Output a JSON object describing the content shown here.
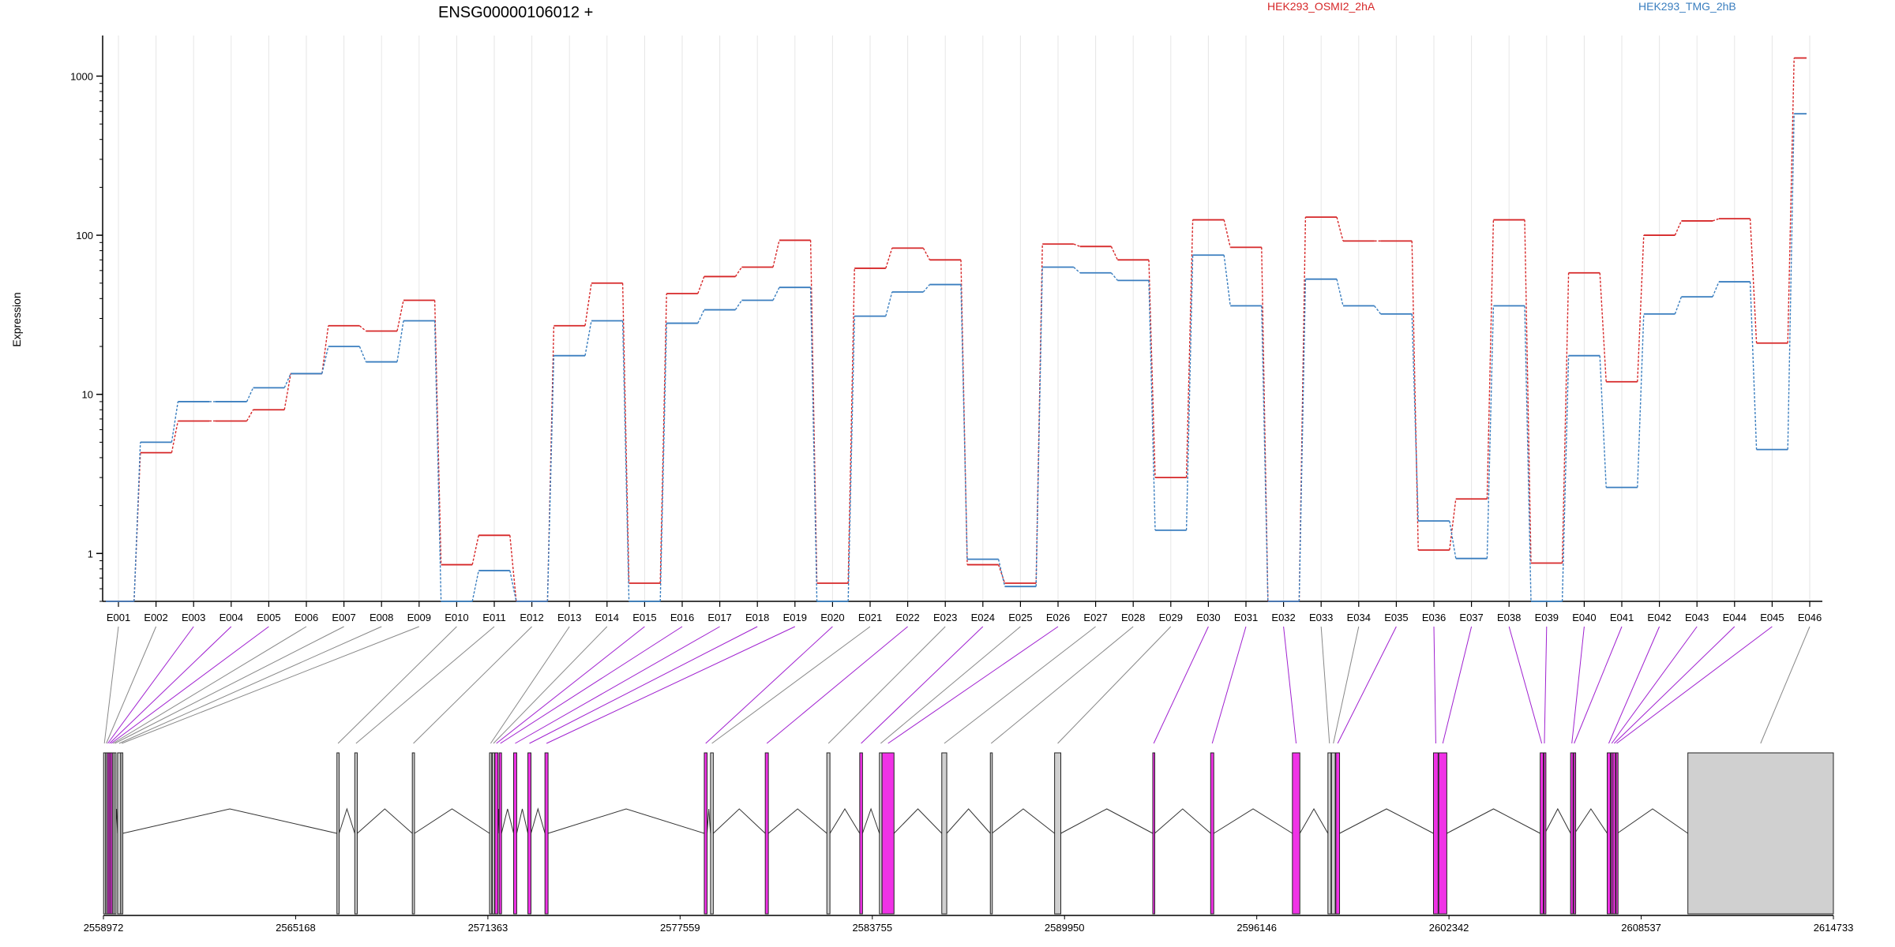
{
  "chart_data": {
    "type": "line",
    "title": "ENSG00000106012 +",
    "ylabel": "Expression",
    "y_scale": "log",
    "ylim": [
      0.5,
      1800
    ],
    "yticks": [
      1,
      10,
      100,
      1000
    ],
    "ytick_labels": [
      "1",
      "10",
      "100",
      "1000"
    ],
    "grid": "vertical, light grey, one per exon",
    "legend_placement": "top",
    "categories": [
      "E001",
      "E002",
      "E003",
      "E004",
      "E005",
      "E006",
      "E007",
      "E008",
      "E009",
      "E010",
      "E011",
      "E012",
      "E013",
      "E014",
      "E015",
      "E016",
      "E017",
      "E018",
      "E019",
      "E020",
      "E021",
      "E022",
      "E023",
      "E024",
      "E025",
      "E026",
      "E027",
      "E028",
      "E029",
      "E030",
      "E031",
      "E032",
      "E033",
      "E034",
      "E035",
      "E036",
      "E037",
      "E038",
      "E039",
      "E040",
      "E041",
      "E042",
      "E043",
      "E044",
      "E045",
      "E046"
    ],
    "series": [
      {
        "name": "HEK293_OSMI2_2hA",
        "color": "#d62728",
        "values": [
          0.5,
          4.3,
          6.8,
          6.8,
          8,
          13.5,
          27,
          25,
          39,
          0.85,
          1.3,
          0.5,
          27,
          50,
          0.65,
          43,
          55,
          63,
          93,
          0.65,
          62,
          83,
          70,
          0.85,
          0.65,
          88,
          85,
          70,
          3,
          125,
          84,
          0.5,
          130,
          92,
          92,
          1.05,
          2.2,
          125,
          0.87,
          58,
          12,
          100,
          123,
          127,
          21,
          1300
        ]
      },
      {
        "name": "HEK293_TMG_2hB",
        "color": "#3a7ebf",
        "values": [
          0.5,
          5,
          9,
          9,
          11,
          13.5,
          20,
          16,
          29,
          0.5,
          0.78,
          0.5,
          17.5,
          29,
          0.5,
          28,
          34,
          39,
          47,
          0.5,
          31,
          44,
          49,
          0.92,
          0.62,
          63,
          58,
          52,
          1.4,
          75,
          36,
          0.5,
          53,
          36,
          32,
          1.6,
          0.93,
          36,
          0.5,
          17.5,
          2.6,
          32,
          41,
          51,
          4.5,
          580
        ]
      }
    ],
    "gene_model": {
      "coordinate_labels": [
        "2558972",
        "2565168",
        "2571363",
        "2577559",
        "2583755",
        "2589950",
        "2596146",
        "2602342",
        "2608537",
        "2614733"
      ],
      "genomic_range": [
        2558972,
        2614733
      ],
      "exons": [
        {
          "id": "E001",
          "start": 2558977,
          "end": 2559027
        },
        {
          "id": "E002",
          "start": 2559047,
          "end": 2559082
        },
        {
          "id": "E003",
          "start": 2559097,
          "end": 2559127
        },
        {
          "id": "E004",
          "start": 2559152,
          "end": 2559182
        },
        {
          "id": "E005",
          "start": 2559207,
          "end": 2559237
        },
        {
          "id": "E006",
          "start": 2559262,
          "end": 2559292
        },
        {
          "id": "E007",
          "start": 2559312,
          "end": 2559362
        },
        {
          "id": "E008",
          "start": 2559427,
          "end": 2559527
        },
        {
          "id": "E009",
          "start": 2559533,
          "end": 2559593
        },
        {
          "id": "E010",
          "start": 2566498,
          "end": 2566568
        },
        {
          "id": "E011",
          "start": 2567073,
          "end": 2567153
        },
        {
          "id": "E012",
          "start": 2568928,
          "end": 2568998
        },
        {
          "id": "E013",
          "start": 2571418,
          "end": 2571488
        },
        {
          "id": "E014",
          "start": 2571508,
          "end": 2571578
        },
        {
          "id": "E015",
          "start": 2571588,
          "end": 2571688
        },
        {
          "id": "E016",
          "start": 2571728,
          "end": 2571803
        },
        {
          "id": "E017",
          "start": 2572193,
          "end": 2572293
        },
        {
          "id": "E018",
          "start": 2572653,
          "end": 2572753
        },
        {
          "id": "E019",
          "start": 2573203,
          "end": 2573303
        },
        {
          "id": "E020",
          "start": 2578339,
          "end": 2578429
        },
        {
          "id": "E021",
          "start": 2578539,
          "end": 2578629
        },
        {
          "id": "E022",
          "start": 2580304,
          "end": 2580404
        },
        {
          "id": "E023",
          "start": 2582289,
          "end": 2582389
        },
        {
          "id": "E024",
          "start": 2583349,
          "end": 2583439
        },
        {
          "id": "E025",
          "start": 2583984,
          "end": 2584064
        },
        {
          "id": "E026",
          "start": 2584069,
          "end": 2584454
        },
        {
          "id": "E027",
          "start": 2585994,
          "end": 2586154
        },
        {
          "id": "E028",
          "start": 2587559,
          "end": 2587609
        },
        {
          "id": "E029",
          "start": 2589630,
          "end": 2589830
        },
        {
          "id": "E030",
          "start": 2592795,
          "end": 2592855
        },
        {
          "id": "E031",
          "start": 2594660,
          "end": 2594760
        },
        {
          "id": "E032",
          "start": 2597295,
          "end": 2597535
        },
        {
          "id": "E033",
          "start": 2598440,
          "end": 2598540
        },
        {
          "id": "E034",
          "start": 2598555,
          "end": 2598675
        },
        {
          "id": "E035",
          "start": 2598695,
          "end": 2598815
        },
        {
          "id": "E036",
          "start": 2601842,
          "end": 2601992
        },
        {
          "id": "E037",
          "start": 2602012,
          "end": 2602272
        },
        {
          "id": "E038",
          "start": 2605282,
          "end": 2605382
        },
        {
          "id": "E039",
          "start": 2605402,
          "end": 2605432
        },
        {
          "id": "E040",
          "start": 2606262,
          "end": 2606342
        },
        {
          "id": "E041",
          "start": 2606362,
          "end": 2606392
        },
        {
          "id": "E042",
          "start": 2607442,
          "end": 2607542
        },
        {
          "id": "E043",
          "start": 2607567,
          "end": 2607607
        },
        {
          "id": "E044",
          "start": 2607627,
          "end": 2607707
        },
        {
          "id": "E045",
          "start": 2607727,
          "end": 2607767
        },
        {
          "id": "E046",
          "start": 2610042,
          "end": 2614732
        }
      ],
      "highlighted_exons": [
        "E003",
        "E004",
        "E005",
        "E015",
        "E016",
        "E017",
        "E018",
        "E019",
        "E020",
        "E022",
        "E024",
        "E026",
        "E030",
        "E031",
        "E032",
        "E035",
        "E036",
        "E037",
        "E038",
        "E039",
        "E040",
        "E041",
        "E042",
        "E043",
        "E044",
        "E045"
      ],
      "colors": {
        "highlight": "#f032e6",
        "default": "#d0d0d0",
        "highlight_line": "#a020d0",
        "default_line": "#888888"
      }
    }
  }
}
